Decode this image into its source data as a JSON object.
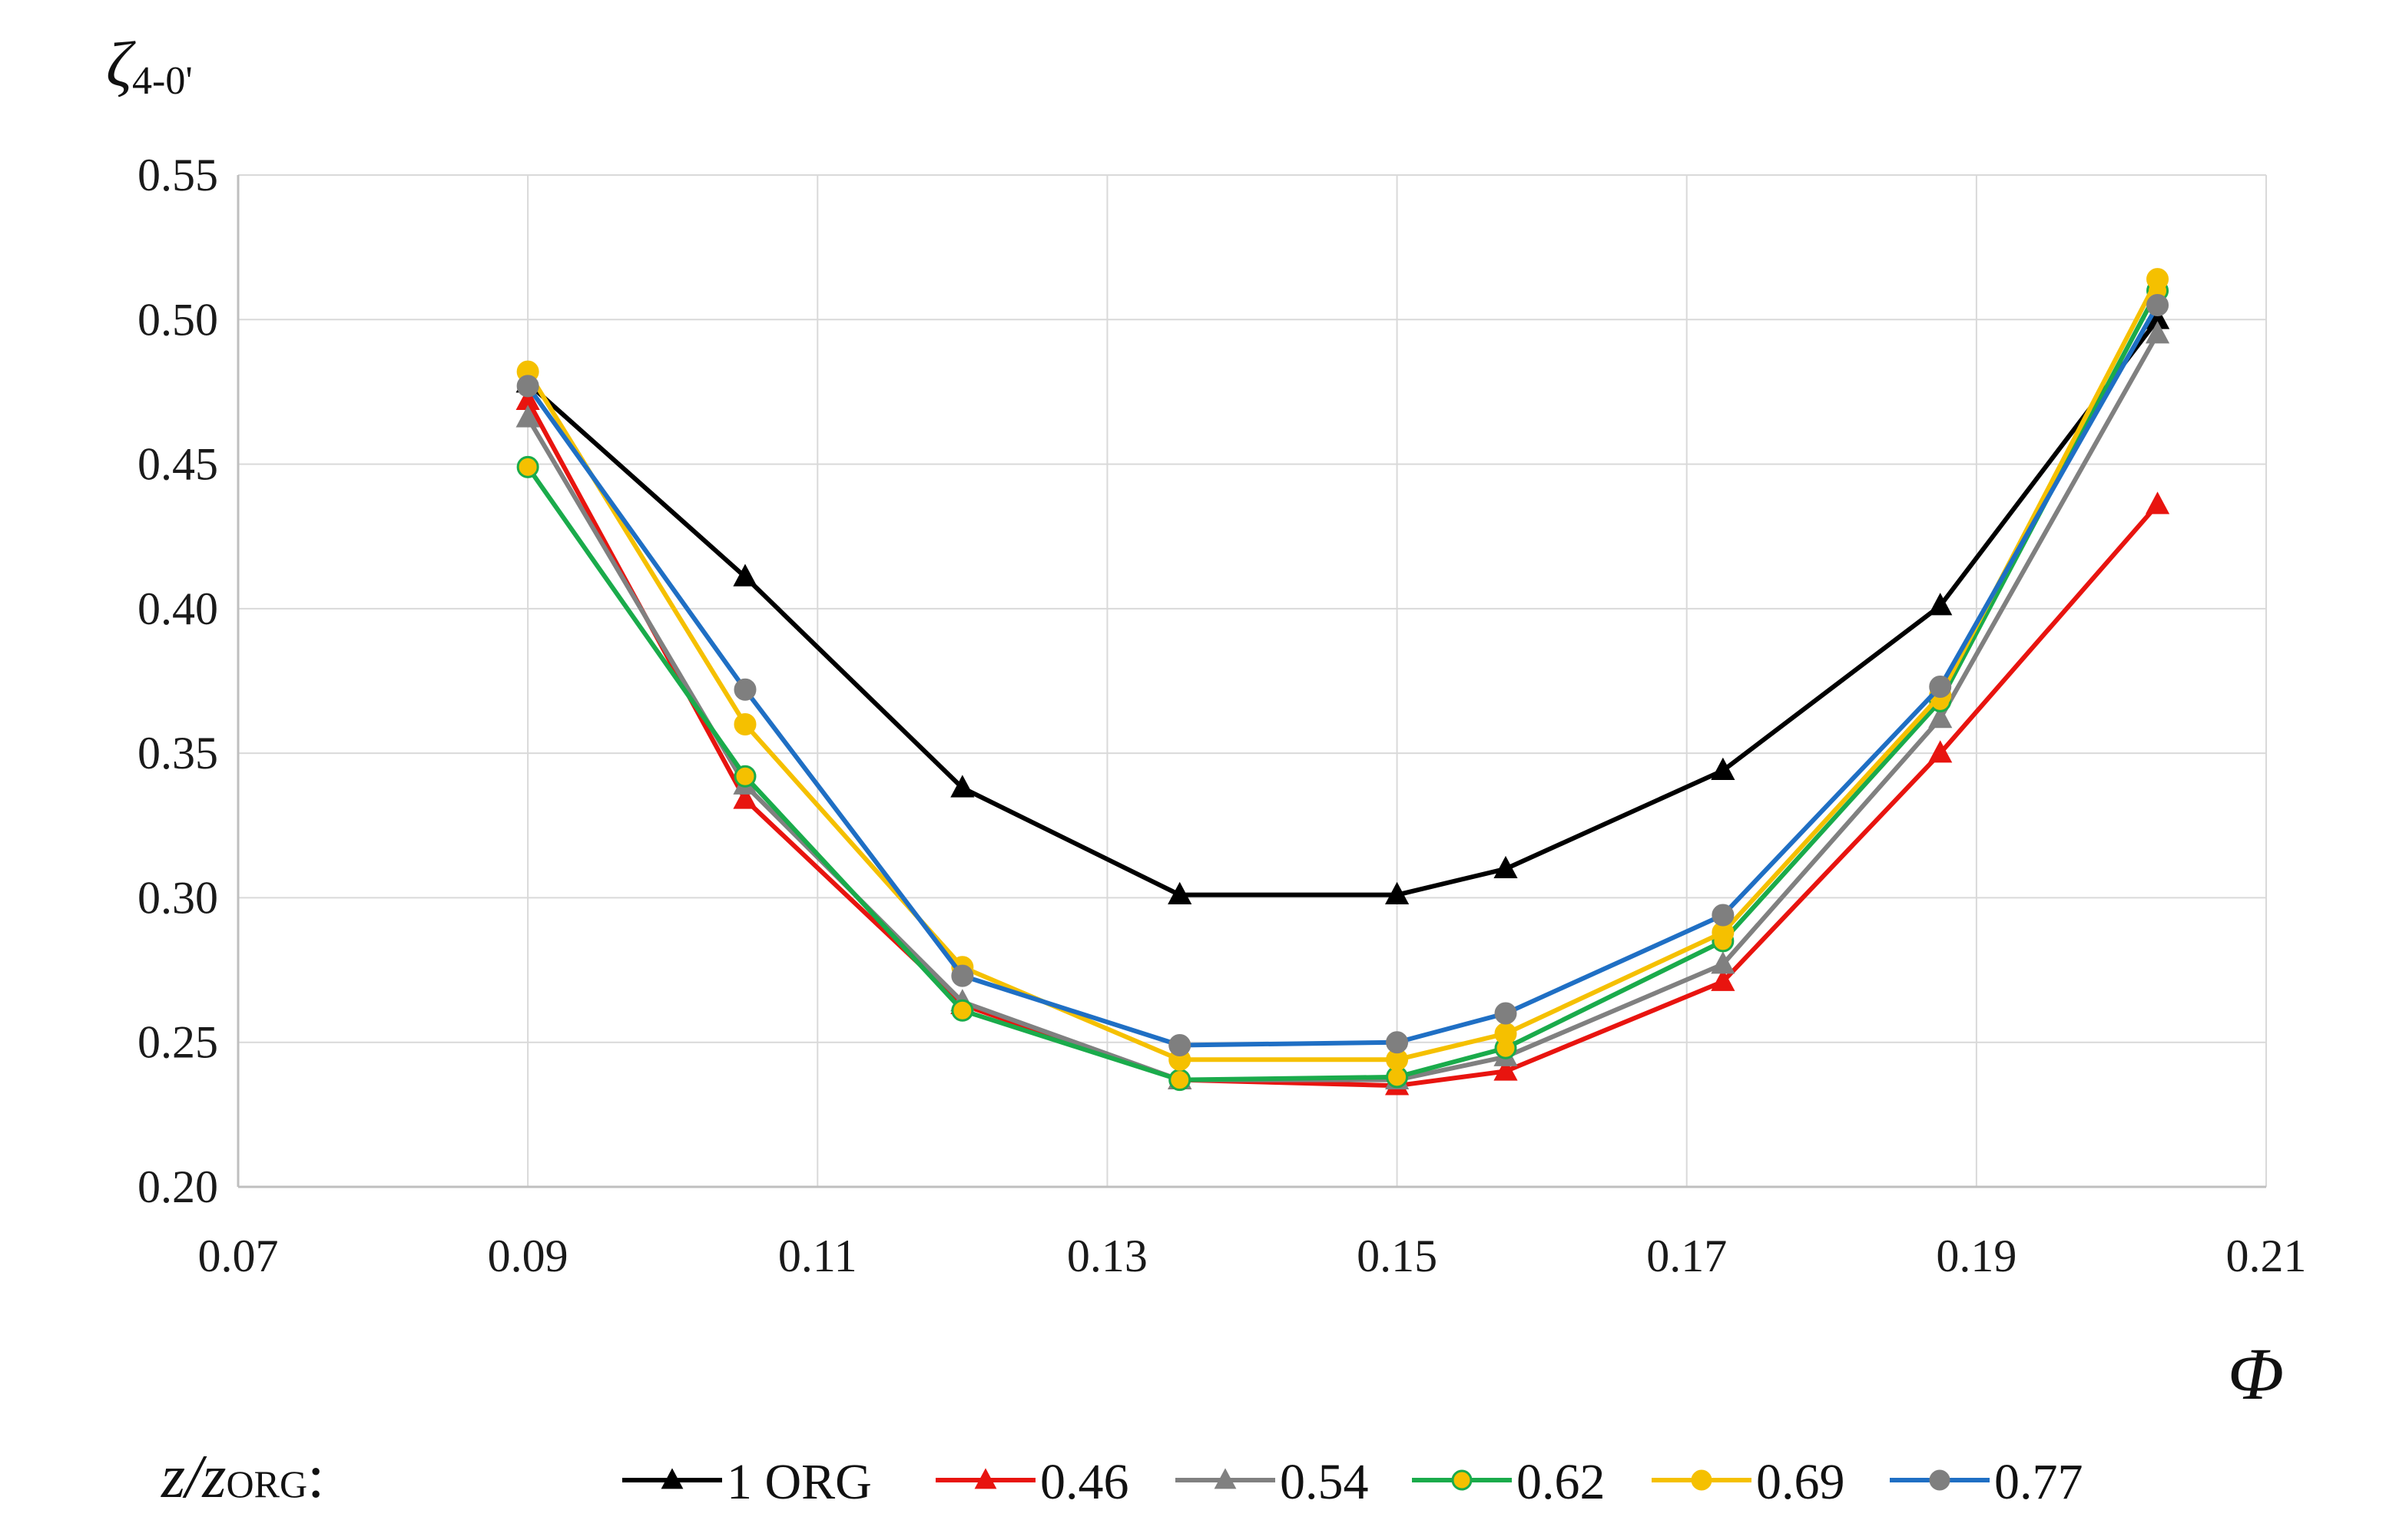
{
  "chart_data": {
    "type": "line",
    "title": "",
    "ylabel": "ζ4-0'",
    "ylabel_main": "ζ",
    "ylabel_sub": "4-0'",
    "xlabel": "Φ",
    "xlim": [
      0.07,
      0.21
    ],
    "ylim": [
      0.2,
      0.55
    ],
    "grid": true,
    "x_ticks": [
      "0.07",
      "0.09",
      "0.11",
      "0.13",
      "0.15",
      "0.17",
      "0.19",
      "0.21"
    ],
    "y_ticks": [
      "0.20",
      "0.25",
      "0.30",
      "0.35",
      "0.40",
      "0.45",
      "0.50",
      "0.55"
    ],
    "legend_title": "z/zORG:",
    "legend_title_main": "z/z",
    "legend_title_sub": "ORG",
    "legend_title_colon": ":",
    "legend_position": "bottom",
    "series": [
      {
        "name": "1 ORG",
        "color": "#000000",
        "marker": "triangle",
        "x": [
          0.09,
          0.105,
          0.12,
          0.135,
          0.15,
          0.1575,
          0.1725,
          0.1875,
          0.2025
        ],
        "y": [
          0.478,
          0.411,
          0.338,
          0.301,
          0.301,
          0.31,
          0.344,
          0.401,
          0.5
        ]
      },
      {
        "name": "0.46",
        "color": "#e8140f",
        "marker": "triangle",
        "x": [
          0.09,
          0.105,
          0.12,
          0.135,
          0.15,
          0.1575,
          0.1725,
          0.1875,
          0.2025
        ],
        "y": [
          0.472,
          0.334,
          0.263,
          0.237,
          0.235,
          0.24,
          0.271,
          0.35,
          0.436
        ]
      },
      {
        "name": "0.54",
        "color": "#808080",
        "marker": "triangle",
        "x": [
          0.09,
          0.105,
          0.12,
          0.135,
          0.15,
          0.1575,
          0.1725,
          0.1875,
          0.2025
        ],
        "y": [
          0.466,
          0.339,
          0.264,
          0.237,
          0.237,
          0.245,
          0.277,
          0.362,
          0.495
        ]
      },
      {
        "name": "0.62",
        "color": "#1aab4b",
        "marker": "circle",
        "x": [
          0.09,
          0.105,
          0.12,
          0.135,
          0.15,
          0.1575,
          0.1725,
          0.1875,
          0.2025
        ],
        "y": [
          0.449,
          0.342,
          0.261,
          0.237,
          0.238,
          0.248,
          0.285,
          0.368,
          0.51
        ]
      },
      {
        "name": "0.69",
        "color": "#f5c000",
        "marker": "circle",
        "x": [
          0.09,
          0.105,
          0.12,
          0.135,
          0.15,
          0.1575,
          0.1725,
          0.1875,
          0.2025
        ],
        "y": [
          0.482,
          0.36,
          0.276,
          0.244,
          0.244,
          0.253,
          0.288,
          0.37,
          0.514
        ]
      },
      {
        "name": "0.77",
        "color": "#1f6fc4",
        "marker": "circle",
        "x": [
          0.09,
          0.105,
          0.12,
          0.135,
          0.15,
          0.1575,
          0.1725,
          0.1875,
          0.2025
        ],
        "y": [
          0.477,
          0.372,
          0.273,
          0.249,
          0.25,
          0.26,
          0.294,
          0.373,
          0.505
        ]
      }
    ]
  }
}
